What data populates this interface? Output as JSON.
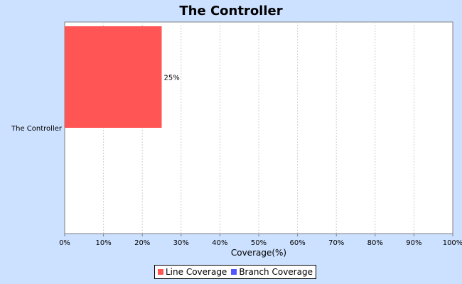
{
  "chart_data": {
    "type": "bar",
    "orientation": "horizontal",
    "title": "The Controller",
    "categories": [
      "The Controller"
    ],
    "series": [
      {
        "name": "Line Coverage",
        "values": [
          25
        ],
        "color": "#ff5555"
      },
      {
        "name": "Branch Coverage",
        "values": [
          0
        ],
        "color": "#5555ff"
      }
    ],
    "data_labels": [
      "25%",
      ""
    ],
    "xlabel": "Coverage(%)",
    "ylabel": "",
    "xlim": [
      0,
      100
    ],
    "x_ticks": [
      0,
      10,
      20,
      30,
      40,
      50,
      60,
      70,
      80,
      90,
      100
    ],
    "x_tick_labels": [
      "0%",
      "10%",
      "20%",
      "30%",
      "40%",
      "50%",
      "60%",
      "70%",
      "80%",
      "90%",
      "100%"
    ],
    "grid": true,
    "legend_position": "bottom"
  }
}
